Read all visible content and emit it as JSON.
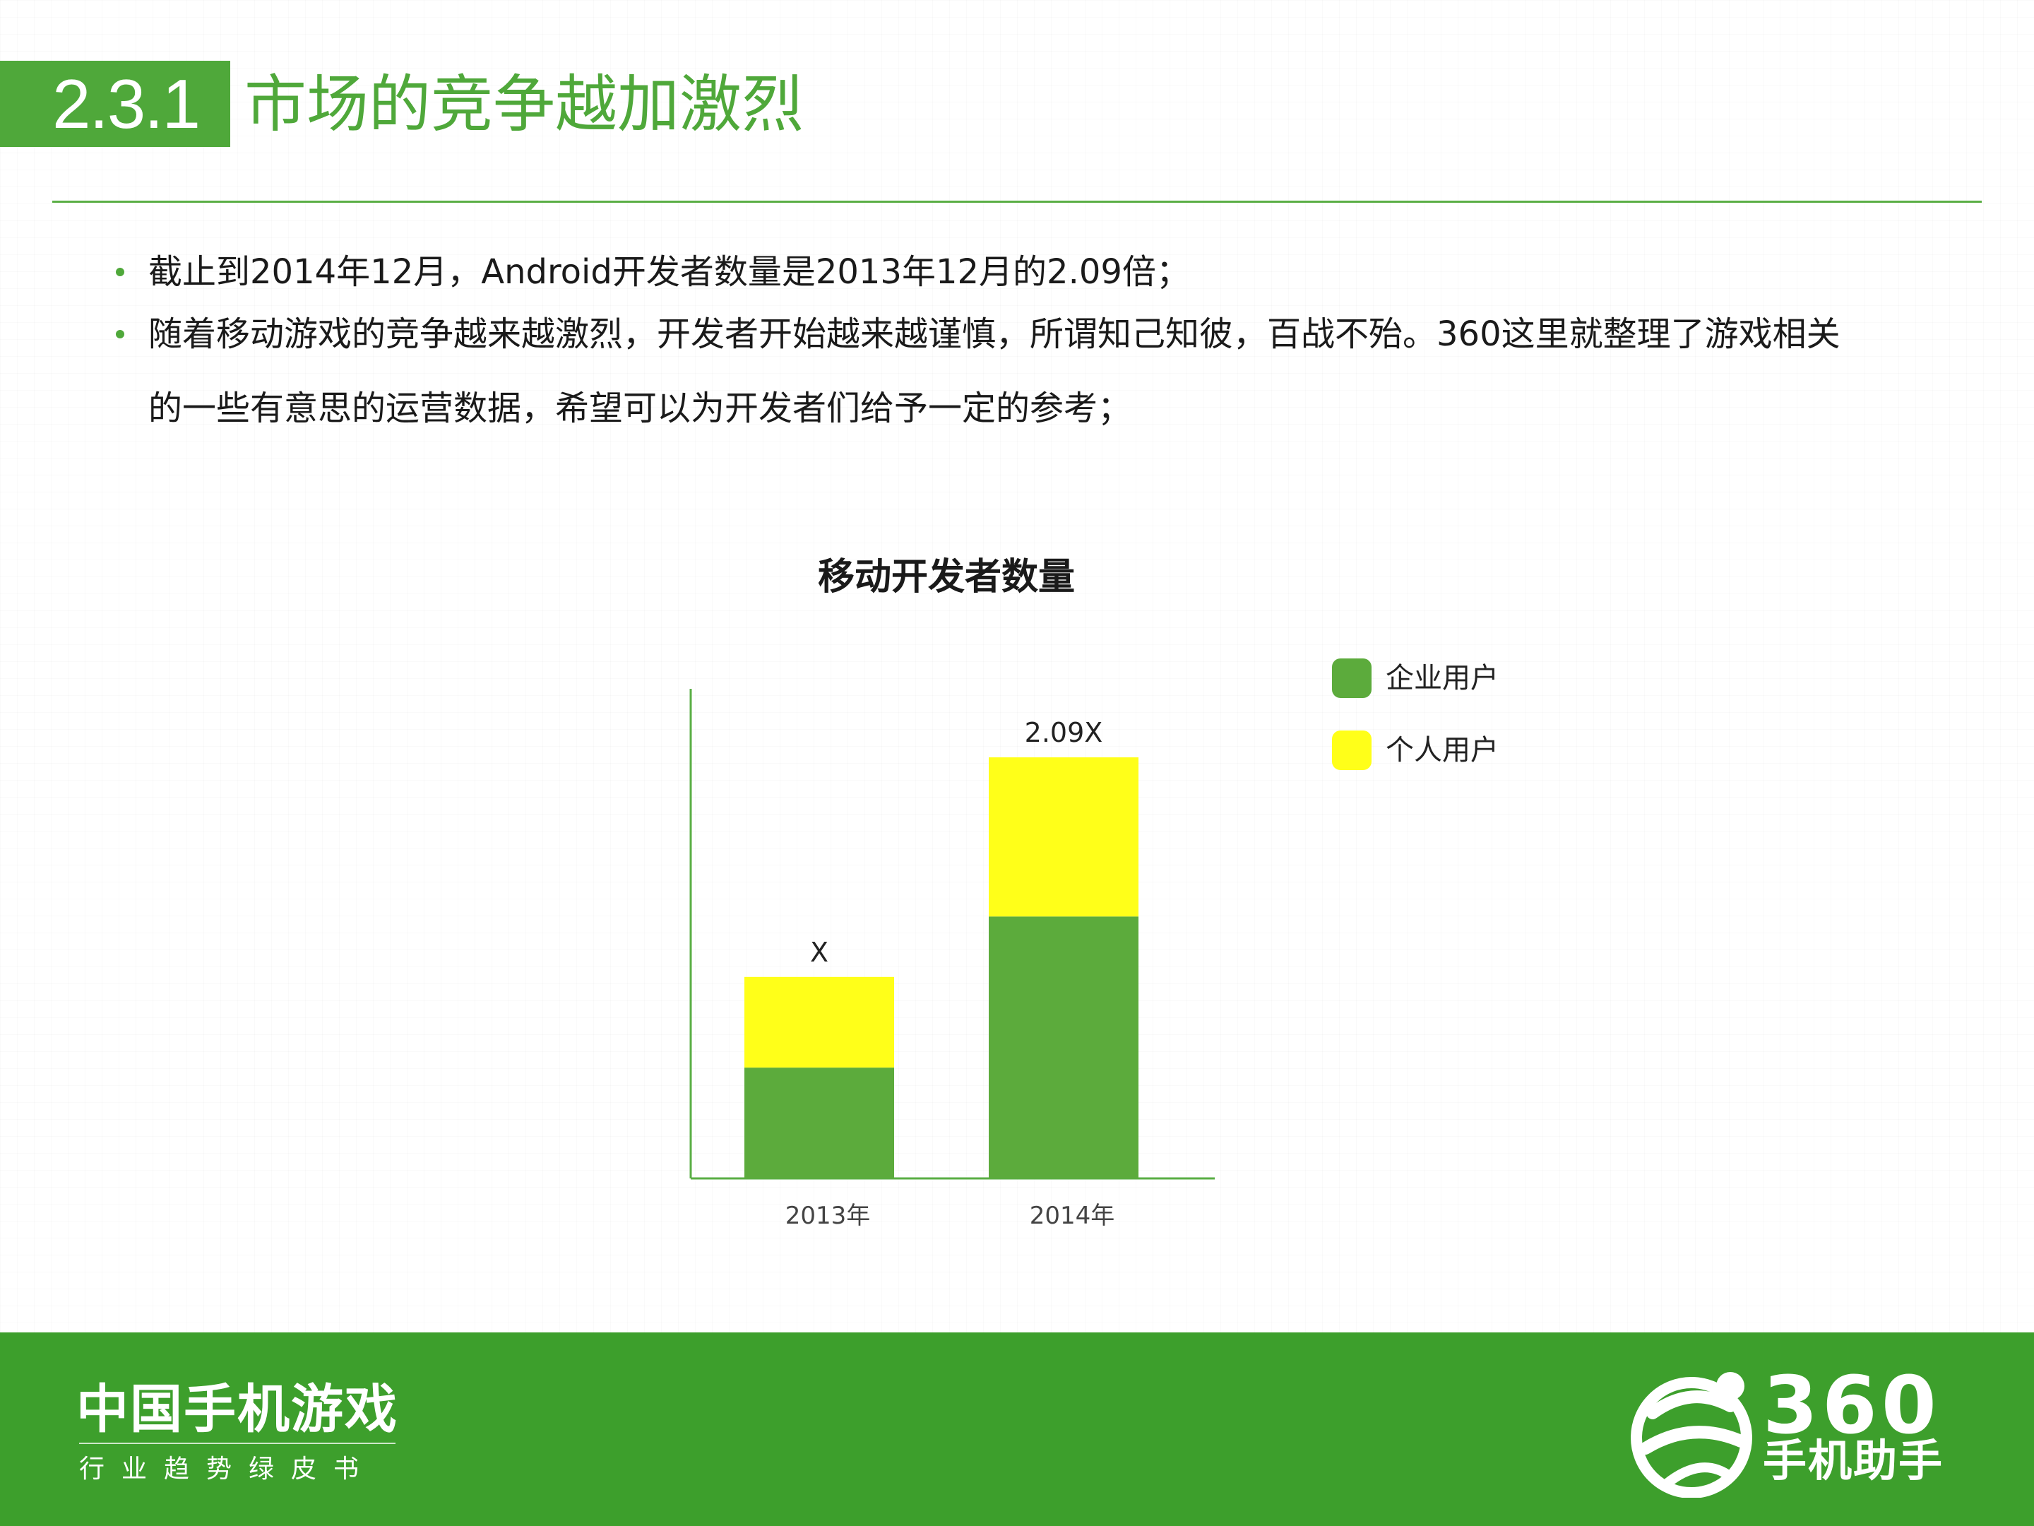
{
  "header": {
    "section_number": "2.3.1",
    "title": "市场的竞争越加激烈"
  },
  "bullets": [
    {
      "line1": "截止到2014年12月，Android开发者数量是2013年12月的2.09倍；"
    },
    {
      "line1": "随着移动游戏的竞争越来越激烈，开发者开始越来越谨慎，所谓知己知彼，百战不殆。360这里就整理了游戏相关",
      "line2": "的一些有意思的运营数据，希望可以为开发者们给予一定的参考；"
    }
  ],
  "colors": {
    "brand_green": "#4fa83a",
    "enterprise": "#5cab3c",
    "individual": "#ffff19",
    "footer_green": "#3d9f2c"
  },
  "chart_data": {
    "type": "bar",
    "stacked": true,
    "title": "移动开发者数量",
    "categories": [
      "2013年",
      "2014年"
    ],
    "series": [
      {
        "name": "企业用户",
        "color": "#5cab3c",
        "values": [
          0.55,
          1.3
        ]
      },
      {
        "name": "个人用户",
        "color": "#ffff19",
        "values": [
          0.45,
          0.79
        ]
      }
    ],
    "data_labels": [
      "X",
      "2.09X"
    ],
    "ylim": [
      0,
      2.43
    ],
    "grid": false,
    "legend": "right"
  },
  "footer": {
    "title": "中国手机游戏",
    "subtitle": "行业趋势绿皮书",
    "logo_number": "360",
    "logo_text": "手机助手"
  }
}
